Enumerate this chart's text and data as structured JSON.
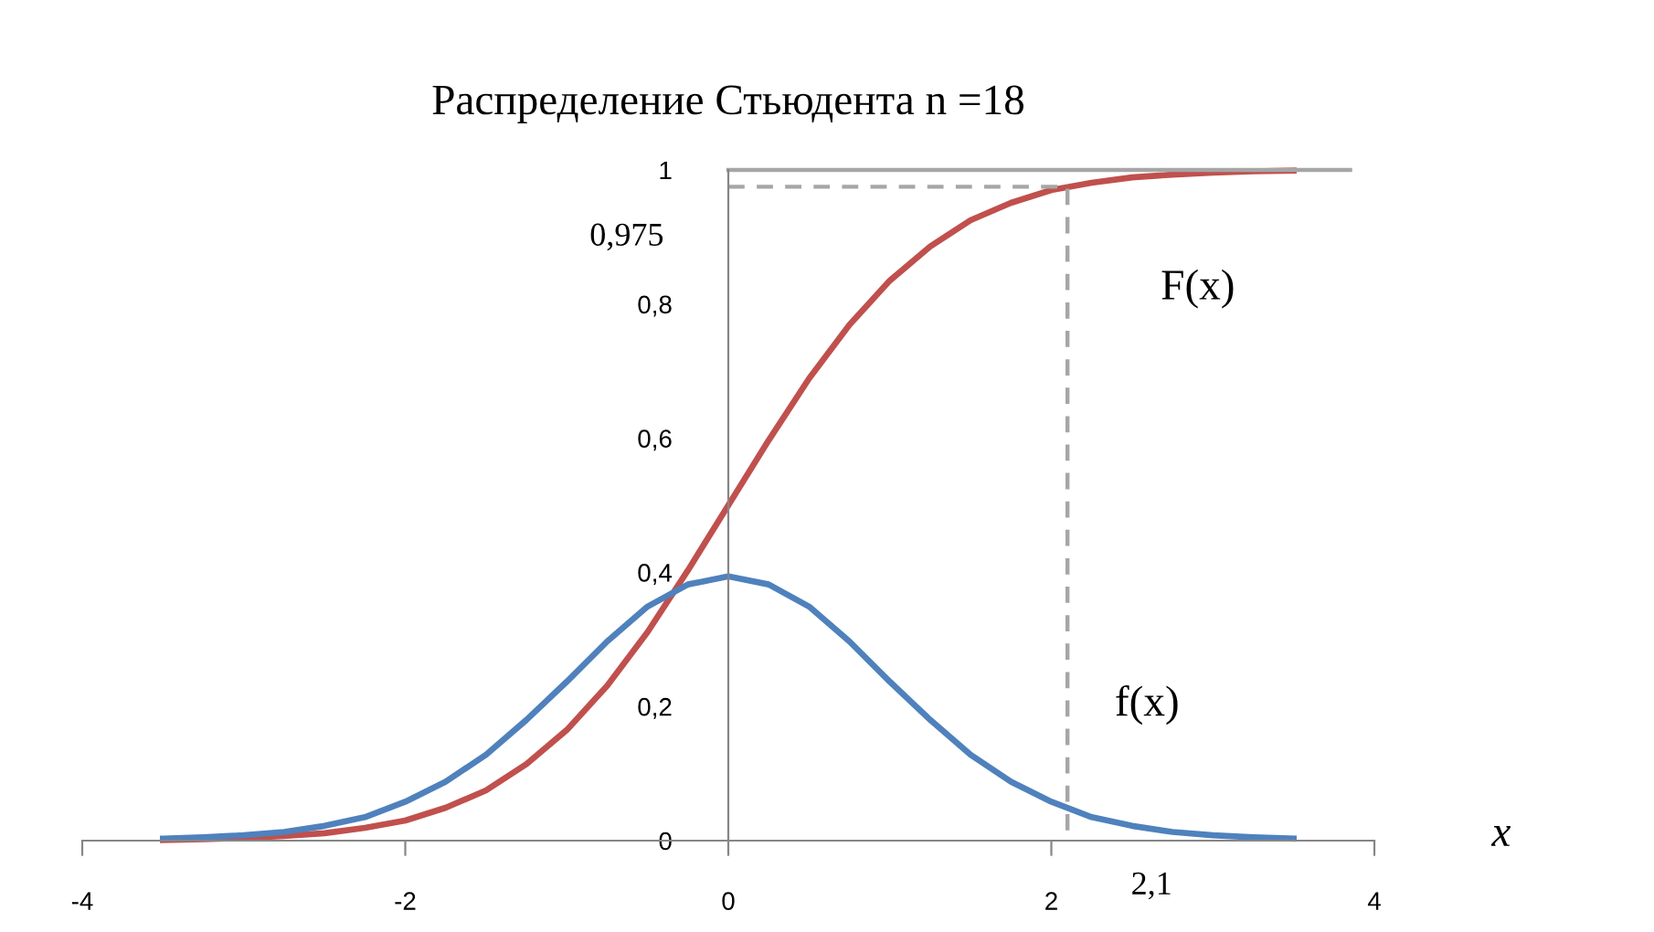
{
  "chart_data": {
    "type": "line",
    "title": "Распределение Стьюдента n =18",
    "xlabel": "x",
    "xlim": [
      -4,
      4
    ],
    "xticks": [
      {
        "value": -4,
        "label": "-4"
      },
      {
        "value": -2,
        "label": "-2"
      },
      {
        "value": 0,
        "label": "0"
      },
      {
        "value": 2,
        "label": "2"
      },
      {
        "value": 4,
        "label": "4"
      }
    ],
    "ylim": [
      0,
      1
    ],
    "yticks": [
      {
        "value": 0,
        "label": "0"
      },
      {
        "value": 0.2,
        "label": "0,2"
      },
      {
        "value": 0.4,
        "label": "0,4"
      },
      {
        "value": 0.6,
        "label": "0,6"
      },
      {
        "value": 0.8,
        "label": "0,8"
      },
      {
        "value": 1,
        "label": "1"
      }
    ],
    "grid": false,
    "marker": "none",
    "series": [
      {
        "name": "F(x)",
        "color": "#c0504d",
        "line_style": "solid",
        "x": [
          -3.5,
          -3.25,
          -3,
          -2.75,
          -2.5,
          -2.25,
          -2,
          -1.75,
          -1.5,
          -1.25,
          -1,
          -0.75,
          -0.5,
          -0.25,
          0,
          0.25,
          0.5,
          0.75,
          1,
          1.25,
          1.5,
          1.75,
          2,
          2.25,
          2.5,
          2.75,
          3,
          3.25,
          3.5
        ],
        "values": [
          0.001,
          0.002,
          0.004,
          0.007,
          0.011,
          0.019,
          0.03,
          0.049,
          0.075,
          0.114,
          0.165,
          0.231,
          0.311,
          0.403,
          0.5,
          0.597,
          0.689,
          0.769,
          0.835,
          0.886,
          0.925,
          0.951,
          0.97,
          0.981,
          0.989,
          0.993,
          0.996,
          0.998,
          0.999
        ]
      },
      {
        "name": "f(x)",
        "color": "#4f81bd",
        "line_style": "solid",
        "x": [
          -3.5,
          -3.25,
          -3,
          -2.75,
          -2.5,
          -2.25,
          -2,
          -1.75,
          -1.5,
          -1.25,
          -1,
          -0.75,
          -0.5,
          -0.25,
          0,
          0.25,
          0.5,
          0.75,
          1,
          1.25,
          1.5,
          1.75,
          2,
          2.25,
          2.5,
          2.75,
          3,
          3.25,
          3.5
        ],
        "values": [
          0.003,
          0.005,
          0.008,
          0.013,
          0.022,
          0.035,
          0.058,
          0.088,
          0.128,
          0.18,
          0.237,
          0.297,
          0.349,
          0.382,
          0.394,
          0.382,
          0.349,
          0.297,
          0.237,
          0.18,
          0.128,
          0.088,
          0.058,
          0.035,
          0.022,
          0.013,
          0.008,
          0.005,
          0.003
        ]
      },
      {
        "color": "#a6a6a6",
        "line_style": "dashed",
        "x": [
          0,
          2.1,
          2.1
        ],
        "values": [
          0.975,
          0.975,
          0
        ]
      },
      {
        "color": "#a6a6a6",
        "line_style": "solid",
        "x": [
          0,
          3.85
        ],
        "values": [
          1,
          1
        ]
      }
    ],
    "annotations": [
      {
        "text": "0,975",
        "x": 0,
        "y": 0.975
      },
      {
        "text": "2,1",
        "x": 2.1,
        "y": 0
      }
    ]
  }
}
